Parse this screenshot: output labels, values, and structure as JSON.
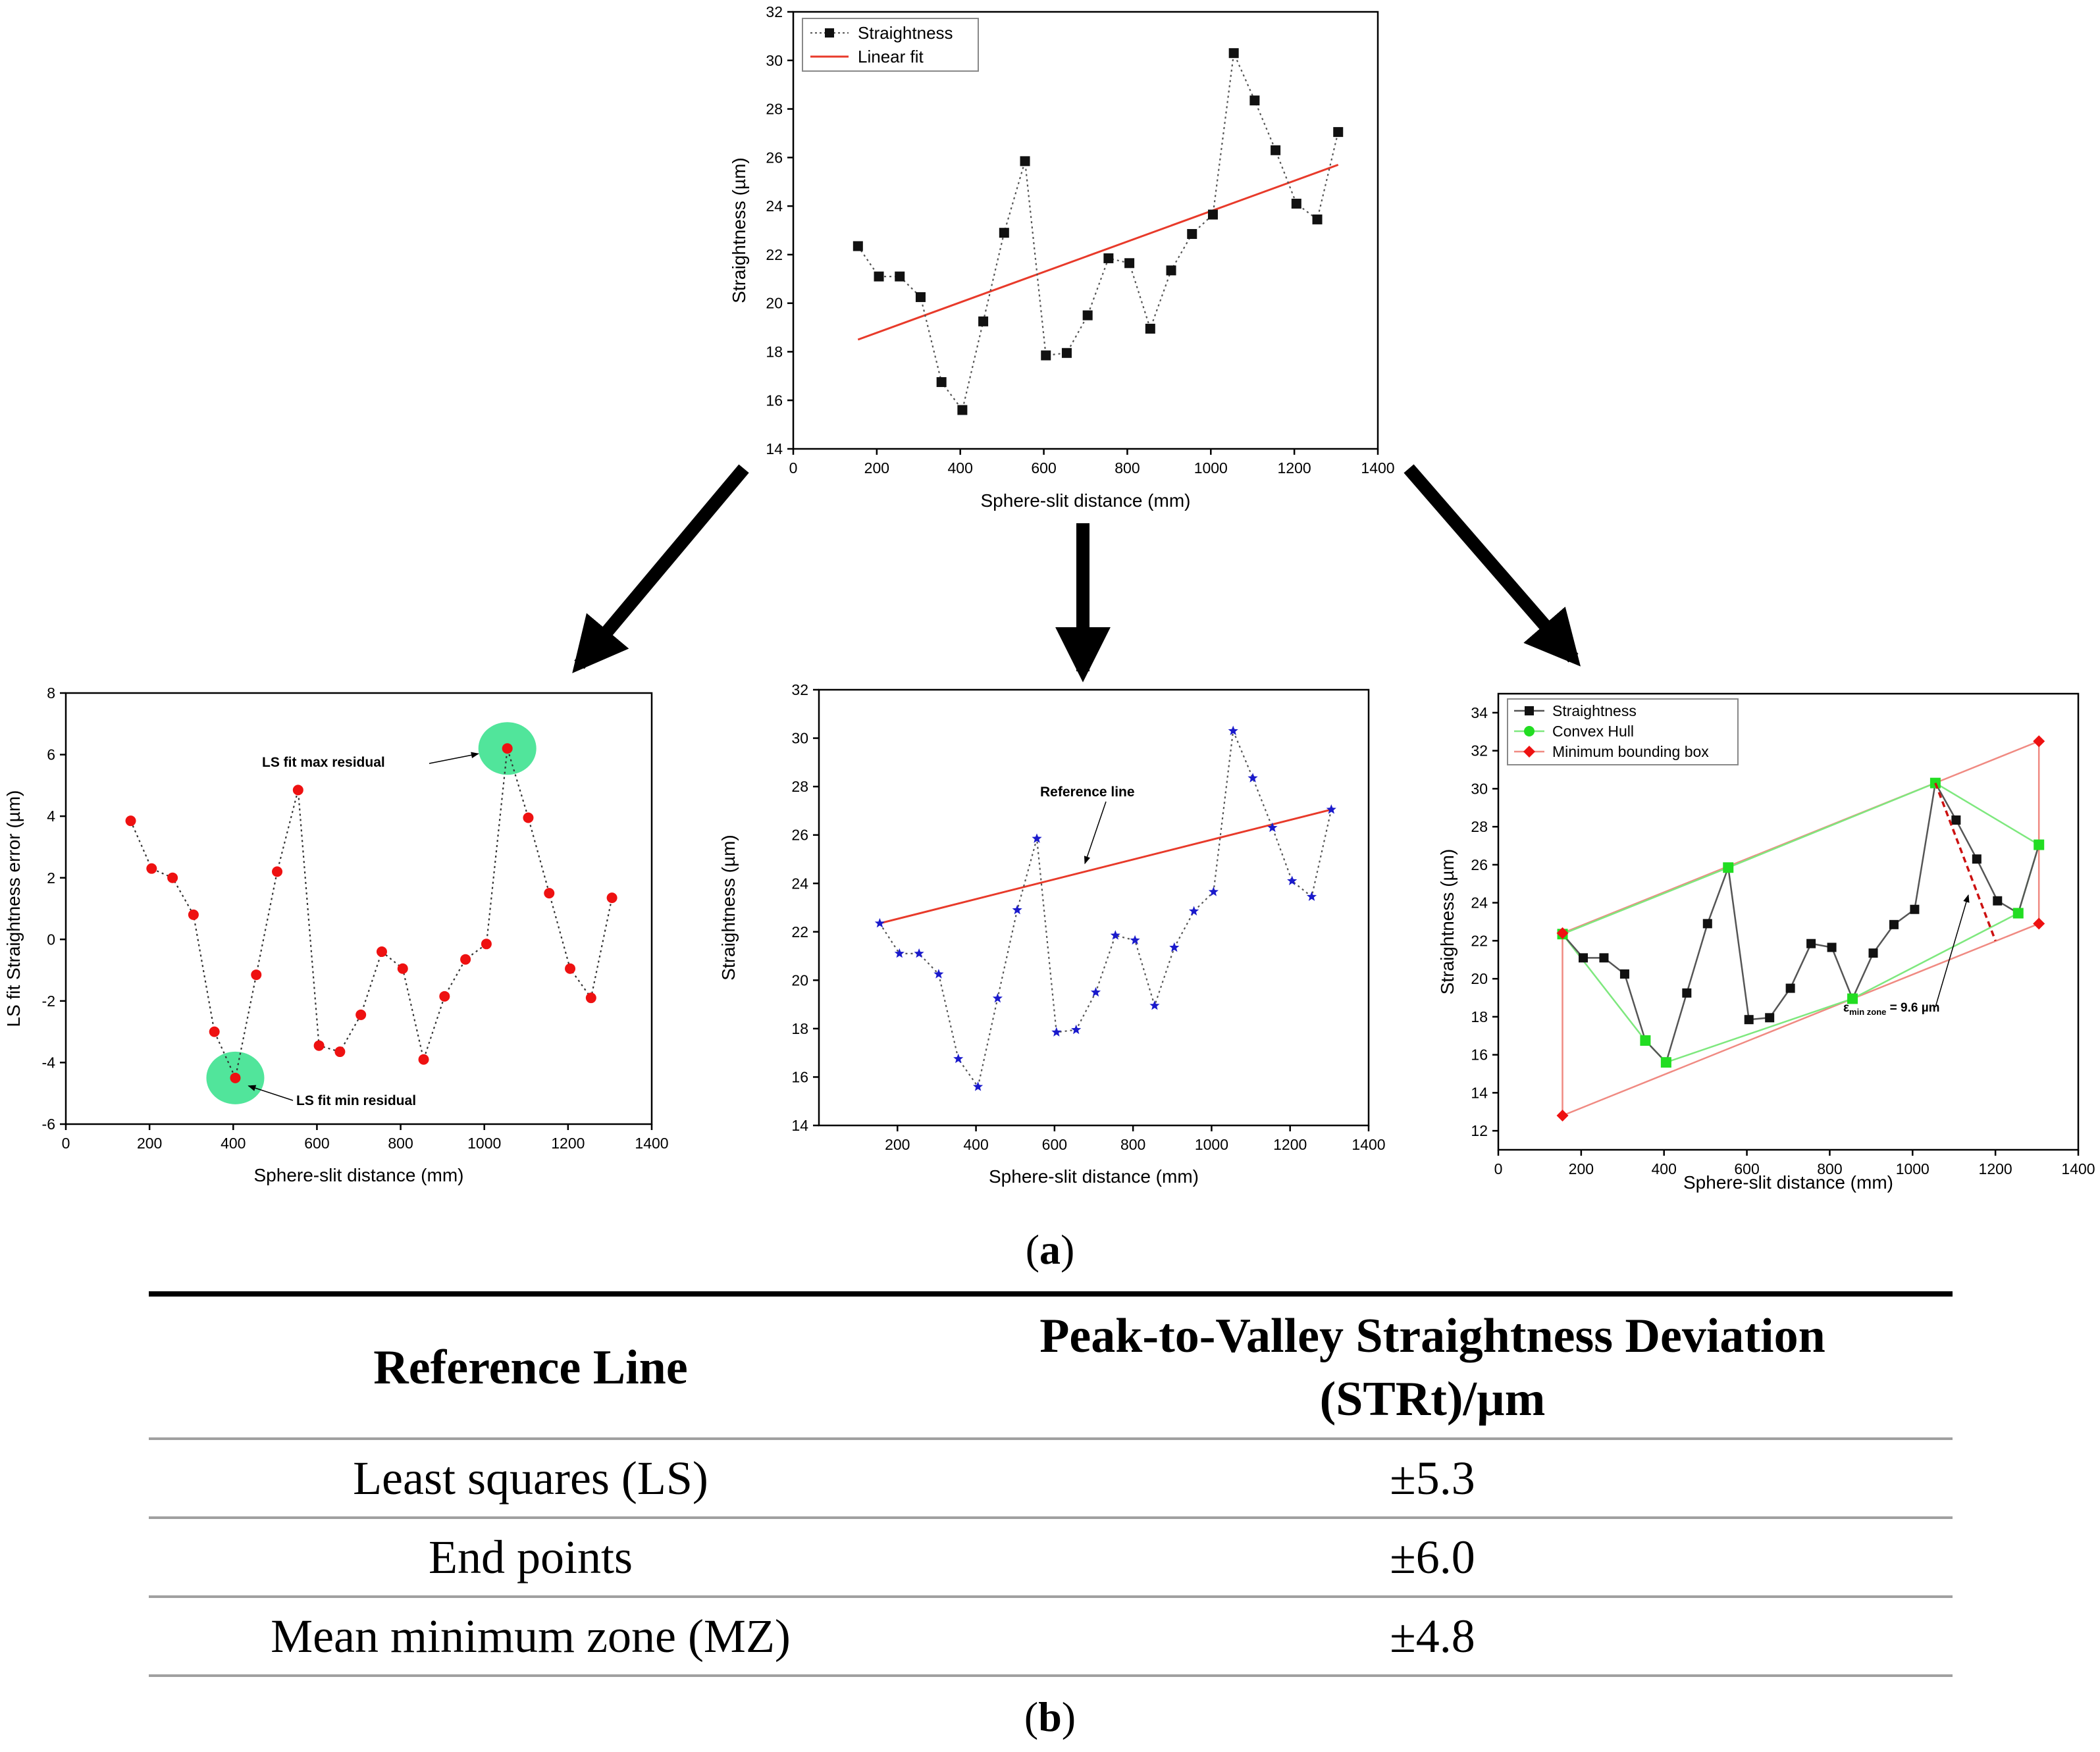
{
  "colors": {
    "black_series": "#111111",
    "red_fit": "#e83a2a",
    "red_points": "#ee1111",
    "blue_stars": "#1a1acc",
    "green_hull": "#22dd22",
    "green_halo": "#33e08a",
    "box_red": "#f08a82",
    "axis": "#000000",
    "arrow": "#000000"
  },
  "chart_data": [
    {
      "id": "top",
      "type": "scatter",
      "xlabel": "Sphere-slit distance (mm)",
      "ylabel": "Straightness (µm)",
      "xlim": [
        0,
        1400
      ],
      "ylim": [
        14,
        32
      ],
      "xticks": [
        "0",
        "200",
        "400",
        "600",
        "800",
        "1000",
        "1200",
        "1400"
      ],
      "yticks": [
        "14",
        "16",
        "18",
        "20",
        "22",
        "24",
        "26",
        "28",
        "30",
        "32"
      ],
      "x": [
        155,
        205,
        255,
        305,
        355,
        405,
        455,
        505,
        555,
        605,
        655,
        705,
        755,
        805,
        855,
        905,
        955,
        1005,
        1055,
        1105,
        1155,
        1205,
        1255,
        1305
      ],
      "series": [
        {
          "name": "Straightness",
          "values": [
            22.35,
            21.1,
            21.1,
            20.25,
            16.75,
            15.6,
            19.25,
            22.9,
            25.85,
            17.85,
            17.95,
            19.5,
            21.85,
            21.65,
            18.95,
            21.35,
            22.85,
            23.65,
            30.3,
            28.35,
            26.3,
            24.1,
            23.45,
            27.05
          ]
        },
        {
          "name": "Linear fit",
          "x": [
            155,
            1305
          ],
          "values": [
            18.5,
            25.7
          ]
        }
      ],
      "legend": [
        "Straightness",
        "Linear fit"
      ]
    },
    {
      "id": "ls",
      "type": "scatter",
      "xlabel": "Sphere-slit distance (mm)",
      "ylabel": "LS fit Straightness error (µm)",
      "xlim": [
        0,
        1400
      ],
      "ylim": [
        -6,
        8
      ],
      "xticks": [
        "0",
        "200",
        "400",
        "600",
        "800",
        "1000",
        "1200",
        "1400"
      ],
      "yticks": [
        "-6",
        "-4",
        "-2",
        "0",
        "2",
        "4",
        "6",
        "8"
      ],
      "x": [
        155,
        205,
        255,
        305,
        355,
        405,
        455,
        505,
        555,
        605,
        655,
        705,
        755,
        805,
        855,
        905,
        955,
        1005,
        1055,
        1105,
        1155,
        1205,
        1255,
        1305
      ],
      "series": [
        {
          "name": "LS fit residual",
          "values": [
            3.85,
            2.3,
            2.0,
            0.8,
            -3.0,
            -4.5,
            -1.15,
            2.2,
            4.85,
            -3.45,
            -3.65,
            -2.45,
            -0.4,
            -0.95,
            -3.9,
            -1.85,
            -0.65,
            -0.15,
            6.2,
            3.95,
            1.5,
            -0.95,
            -1.9,
            1.35
          ]
        }
      ],
      "annotations": {
        "max": "LS fit max residual",
        "min": "LS fit min residual"
      }
    },
    {
      "id": "ep",
      "type": "scatter",
      "xlabel": "Sphere-slit distance (mm)",
      "ylabel": "Straightness (µm)",
      "xlim": [
        0,
        1400
      ],
      "ylim": [
        14,
        32
      ],
      "xticks": [
        "200",
        "400",
        "600",
        "800",
        "1000",
        "1200",
        "1400"
      ],
      "yticks": [
        "14",
        "16",
        "18",
        "20",
        "22",
        "24",
        "26",
        "28",
        "30",
        "32"
      ],
      "x": [
        155,
        205,
        255,
        305,
        355,
        405,
        455,
        505,
        555,
        605,
        655,
        705,
        755,
        805,
        855,
        905,
        955,
        1005,
        1055,
        1105,
        1155,
        1205,
        1255,
        1305
      ],
      "series": [
        {
          "name": "Straightness",
          "values": [
            22.35,
            21.1,
            21.1,
            20.25,
            16.75,
            15.6,
            19.25,
            22.9,
            25.85,
            17.85,
            17.95,
            19.5,
            21.85,
            21.65,
            18.95,
            21.35,
            22.85,
            23.65,
            30.3,
            28.35,
            26.3,
            24.1,
            23.45,
            27.05
          ]
        },
        {
          "name": "Reference line",
          "x": [
            155,
            1305
          ],
          "values": [
            22.35,
            27.05
          ]
        }
      ],
      "annotations": {
        "ref": "Reference line"
      }
    },
    {
      "id": "mz",
      "type": "scatter",
      "xlabel": "Sphere-slit distance (mm)",
      "ylabel": "Straightness (µm)",
      "xlim": [
        0,
        1400
      ],
      "ylim": [
        11,
        35
      ],
      "xticks": [
        "0",
        "200",
        "400",
        "600",
        "800",
        "1000",
        "1200",
        "1400"
      ],
      "yticks": [
        "12",
        "14",
        "16",
        "18",
        "20",
        "22",
        "24",
        "26",
        "28",
        "30",
        "32",
        "34"
      ],
      "x": [
        155,
        205,
        255,
        305,
        355,
        405,
        455,
        505,
        555,
        605,
        655,
        705,
        755,
        805,
        855,
        905,
        955,
        1005,
        1055,
        1105,
        1155,
        1205,
        1255,
        1305
      ],
      "series": [
        {
          "name": "Straightness",
          "values": [
            22.35,
            21.1,
            21.1,
            20.25,
            16.75,
            15.6,
            19.25,
            22.9,
            25.85,
            17.85,
            17.95,
            19.5,
            21.85,
            21.65,
            18.95,
            21.35,
            22.85,
            23.65,
            30.3,
            28.35,
            26.3,
            24.1,
            23.45,
            27.05
          ]
        },
        {
          "name": "Convex Hull",
          "x": [
            155,
            355,
            405,
            855,
            1255,
            1305,
            1055,
            555,
            155
          ],
          "values": [
            22.35,
            16.75,
            15.6,
            18.95,
            23.45,
            27.05,
            30.3,
            25.85,
            22.35
          ]
        },
        {
          "name": "Minimum bounding box",
          "x": [
            155,
            1305,
            1305,
            155,
            155
          ],
          "values": [
            22.4,
            32.5,
            22.9,
            12.8,
            22.4
          ]
        }
      ],
      "legend": [
        "Straightness",
        "Convex Hull",
        "Minimum bounding box"
      ],
      "annotations": {
        "zone_label": "ε",
        "zone_sub": "min zone",
        "zone_value": " = 9.6 µm"
      }
    }
  ],
  "caption_a": "a",
  "caption_b": "b",
  "table": {
    "header_col1": "Reference Line",
    "header_col2_line1": "Peak-to-Valley Straightness Deviation",
    "header_col2_line2": "(STRt)/µm",
    "rows": [
      {
        "method": "Least squares (LS)",
        "value": "±5.3"
      },
      {
        "method": "End points",
        "value": "±6.0"
      },
      {
        "method": "Mean minimum zone (MZ)",
        "value": "±4.8"
      }
    ]
  }
}
